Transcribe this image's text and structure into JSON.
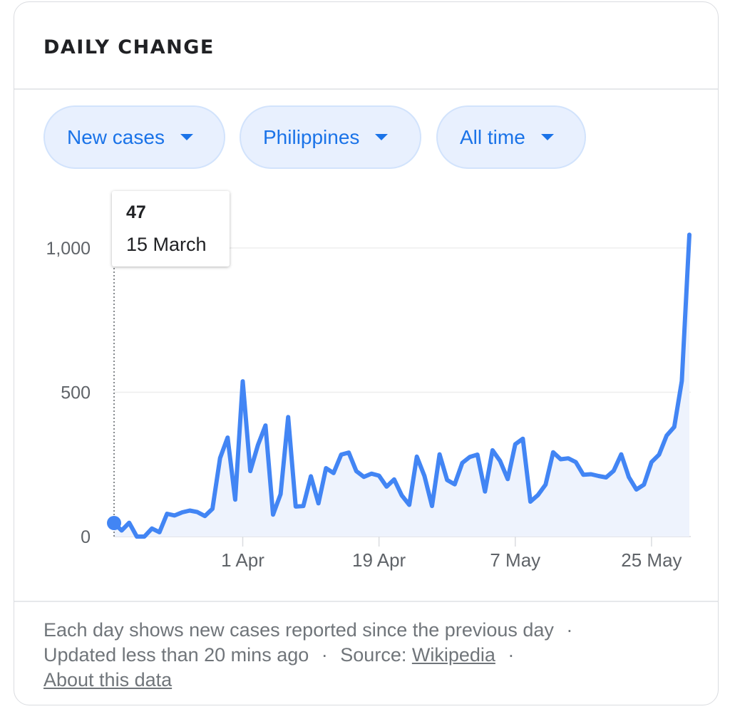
{
  "card": {
    "title": "DAILY CHANGE"
  },
  "filters": {
    "metric": "New cases",
    "region": "Philippines",
    "range": "All time"
  },
  "tooltip": {
    "value": "47",
    "date": "15 March"
  },
  "footer": {
    "description": "Each day shows new cases reported since the previous day",
    "updated": "Updated less than 20 mins ago",
    "source_label": "Source:",
    "source_link": "Wikipedia",
    "about_link": "About this data",
    "separator": "·"
  },
  "colors": {
    "line": "#4285f4",
    "area": "#eef3fd",
    "chip_bg": "#e8f0fe",
    "chip_text": "#1a73e8"
  },
  "chart_data": {
    "type": "line",
    "title": "",
    "xlabel": "",
    "ylabel": "",
    "ylim": [
      0,
      1050
    ],
    "x_start": "15 March",
    "x_end": "29 May",
    "xticks": [
      {
        "day": 17,
        "label": "1 Apr"
      },
      {
        "day": 35,
        "label": "19 Apr"
      },
      {
        "day": 53,
        "label": "7 May"
      },
      {
        "day": 71,
        "label": "25 May"
      }
    ],
    "yticks": [
      {
        "value": 0,
        "label": "0"
      },
      {
        "value": 500,
        "label": "500"
      },
      {
        "value": 1000,
        "label": "1,000"
      }
    ],
    "grid": true,
    "highlight_index": 0,
    "series": [
      {
        "values": [
          47,
          21,
          48,
          0,
          0,
          28,
          15,
          79,
          73,
          84,
          90,
          85,
          71,
          96,
          272,
          343,
          128,
          538,
          227,
          317,
          385,
          76,
          147,
          414,
          104,
          106,
          209,
          115,
          237,
          220,
          284,
          291,
          227,
          207,
          218,
          211,
          173,
          198,
          143,
          110,
          277,
          210,
          106,
          285,
          196,
          181,
          255,
          276,
          284,
          156,
          299,
          262,
          199,
          320,
          339,
          121,
          144,
          180,
          292,
          268,
          271,
          258,
          214,
          216,
          210,
          205,
          228,
          285,
          206,
          163,
          180,
          258,
          284,
          350,
          380,
          539,
          1046
        ]
      }
    ]
  }
}
